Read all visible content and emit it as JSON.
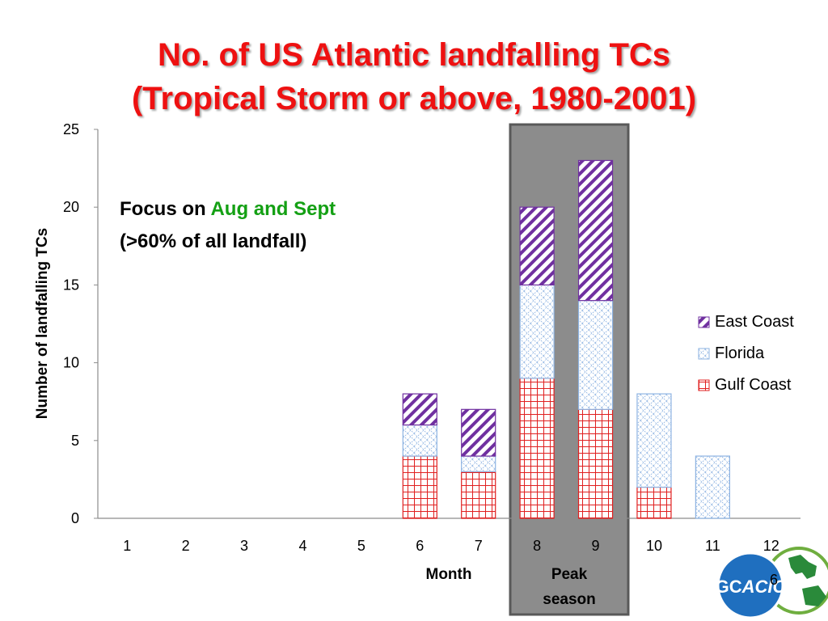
{
  "slide": {
    "title_line1": "No. of US Atlantic landfalling TCs",
    "title_line2": "(Tropical Storm or above, 1980-2001)",
    "annotation_line1_prefix": "Focus on ",
    "annotation_line1_highlight": "Aug and Sept",
    "annotation_line2": "(>60% of all landfall)",
    "peak_label_line1": "Peak",
    "peak_label_line2": "season",
    "page_number": "6",
    "logo_text_gc": "GC",
    "logo_text_acic": "ACIC"
  },
  "colors": {
    "title": "#ee1111",
    "highlight_green": "#14a014",
    "east_coast": "#7030a0",
    "florida": "#8db3e2",
    "gulf_coast": "#e02020",
    "peak_box_fill": "#8c8c8c",
    "logo_blue": "#1f6fbf"
  },
  "chart_data": {
    "type": "bar",
    "stacked": true,
    "categories": [
      "1",
      "2",
      "3",
      "4",
      "5",
      "6",
      "7",
      "8",
      "9",
      "10",
      "11",
      "12"
    ],
    "series": [
      {
        "name": "Gulf Coast",
        "pattern": "grid",
        "values": [
          0,
          0,
          0,
          0,
          0,
          4,
          3,
          9,
          7,
          2,
          0,
          0
        ]
      },
      {
        "name": "Florida",
        "pattern": "crosshatch",
        "values": [
          0,
          0,
          0,
          0,
          0,
          2,
          1,
          6,
          7,
          6,
          4,
          0
        ]
      },
      {
        "name": "East Coast",
        "pattern": "diagonal",
        "values": [
          0,
          0,
          0,
          0,
          0,
          2,
          3,
          5,
          9,
          0,
          0,
          0
        ]
      }
    ],
    "legend_order": [
      "East Coast",
      "Florida",
      "Gulf Coast"
    ],
    "xlabel": "Month",
    "ylabel": "Number of landfalling TCs",
    "ylim": [
      0,
      25
    ],
    "yticks": [
      0,
      5,
      10,
      15,
      20,
      25
    ],
    "grid": false,
    "legend_position": "right",
    "highlighted_categories": [
      "8",
      "9"
    ]
  }
}
